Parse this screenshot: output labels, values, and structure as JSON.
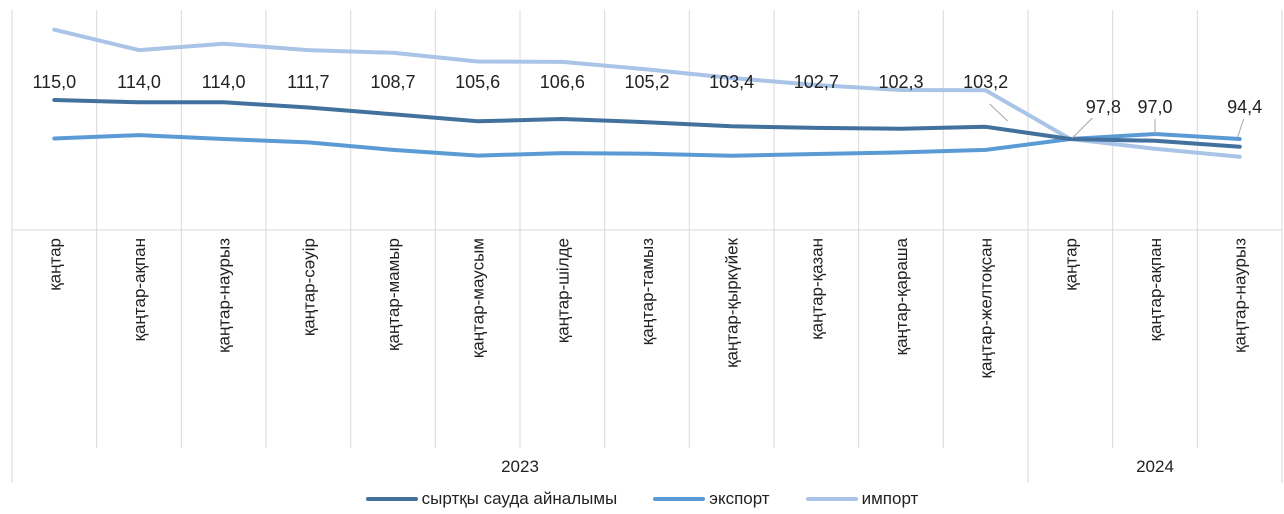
{
  "chart_data": {
    "type": "line",
    "categories": [
      "қаңтар",
      "қаңтар-ақпан",
      "қаңтар-наурыз",
      "қаңтар-сәуір",
      "қаңтар-мамыр",
      "қаңтар-маусым",
      "қаңтар-шілде",
      "қаңтар-тамыз",
      "қаңтар-қыркүйек",
      "қаңтар-қазан",
      "қаңтар-қараша",
      "қаңтар-желтоқсан",
      "қаңтар",
      "қаңтар-ақпан",
      "қаңтар-наурыз"
    ],
    "year_groups": [
      {
        "label": "2023",
        "count": 12
      },
      {
        "label": "2024",
        "count": 3
      }
    ],
    "series": [
      {
        "name": "сыртқы сауда айналымы",
        "color": "#41719C",
        "values": [
          115.0,
          114.0,
          114.0,
          111.7,
          108.7,
          105.6,
          106.6,
          105.2,
          103.4,
          102.7,
          102.3,
          103.2,
          97.8,
          97.0,
          94.4
        ],
        "labels": [
          "115,0",
          "114,0",
          "114,0",
          "111,7",
          "108,7",
          "105,6",
          "106,6",
          "105,2",
          "103,4",
          "102,7",
          "102,3",
          "103,2",
          "97,8",
          "97,0",
          "94,4"
        ]
      },
      {
        "name": "экспорт",
        "color": "#5B9BD5",
        "values": [
          98.0,
          99.5,
          97.8,
          96.3,
          93.0,
          90.5,
          91.6,
          91.3,
          90.4,
          91.2,
          91.9,
          93.0,
          97.8,
          100.0,
          97.8
        ]
      },
      {
        "name": "импорт",
        "color": "#A9C4E6",
        "values": [
          146.0,
          137.0,
          139.8,
          137.0,
          135.8,
          132.0,
          131.8,
          128.5,
          124.7,
          121.6,
          119.4,
          119.3,
          97.8,
          93.5,
          90.0
        ]
      }
    ],
    "legend_position": "bottom",
    "grid": "vertical"
  }
}
